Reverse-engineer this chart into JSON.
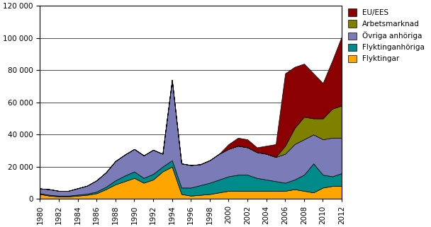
{
  "years": [
    1980,
    1981,
    1982,
    1983,
    1984,
    1985,
    1986,
    1987,
    1988,
    1989,
    1990,
    1991,
    1992,
    1993,
    1994,
    1995,
    1996,
    1997,
    1998,
    1999,
    2000,
    2001,
    2002,
    2003,
    2004,
    2005,
    2006,
    2007,
    2008,
    2009,
    2010,
    2011,
    2012
  ],
  "flyktingar": [
    3000,
    2000,
    1500,
    1500,
    2000,
    2500,
    3500,
    6000,
    9000,
    11000,
    13000,
    10000,
    12000,
    17000,
    20000,
    3000,
    2000,
    2500,
    3000,
    4000,
    5000,
    5000,
    5000,
    5000,
    5000,
    5000,
    5000,
    6000,
    5000,
    4000,
    7000,
    8000,
    8000
  ],
  "flyktinganhöriga": [
    500,
    500,
    500,
    500,
    600,
    700,
    1000,
    1500,
    2500,
    3500,
    4000,
    3000,
    3500,
    3000,
    4000,
    4000,
    5000,
    6000,
    7000,
    8000,
    9000,
    10000,
    10000,
    8000,
    7000,
    6000,
    5000,
    6000,
    10000,
    18000,
    8000,
    6000,
    8000
  ],
  "ovriga_anhoriga": [
    3000,
    3500,
    3000,
    3000,
    4000,
    5000,
    7000,
    9000,
    12000,
    13000,
    14000,
    14000,
    15000,
    8000,
    50000,
    15000,
    14000,
    13000,
    14000,
    16000,
    17000,
    18000,
    17000,
    16000,
    16000,
    15000,
    18000,
    22000,
    22000,
    18000,
    22000,
    24000,
    22000
  ],
  "arbetsmarknad": [
    0,
    0,
    0,
    0,
    0,
    0,
    0,
    0,
    0,
    0,
    0,
    0,
    0,
    0,
    0,
    0,
    0,
    0,
    0,
    0,
    0,
    0,
    0,
    0,
    0,
    0,
    5000,
    10000,
    14000,
    10000,
    13000,
    18000,
    20000
  ],
  "eu_ees": [
    0,
    0,
    0,
    0,
    0,
    0,
    0,
    0,
    0,
    0,
    0,
    0,
    0,
    0,
    0,
    0,
    0,
    0,
    0,
    0,
    3000,
    5000,
    5000,
    3000,
    5000,
    8000,
    45000,
    38000,
    33000,
    28000,
    22000,
    30000,
    43000
  ],
  "colors": {
    "flyktingar": "#FFA500",
    "flyktinganhöriga": "#008B8B",
    "övriga_anhöriga": "#7B7BB8",
    "arbetsmarknad": "#808000",
    "eu_ees": "#8B0000"
  },
  "ylim": [
    0,
    120000
  ],
  "yticks": [
    0,
    20000,
    40000,
    60000,
    80000,
    100000,
    120000
  ],
  "background_color": "#ffffff"
}
